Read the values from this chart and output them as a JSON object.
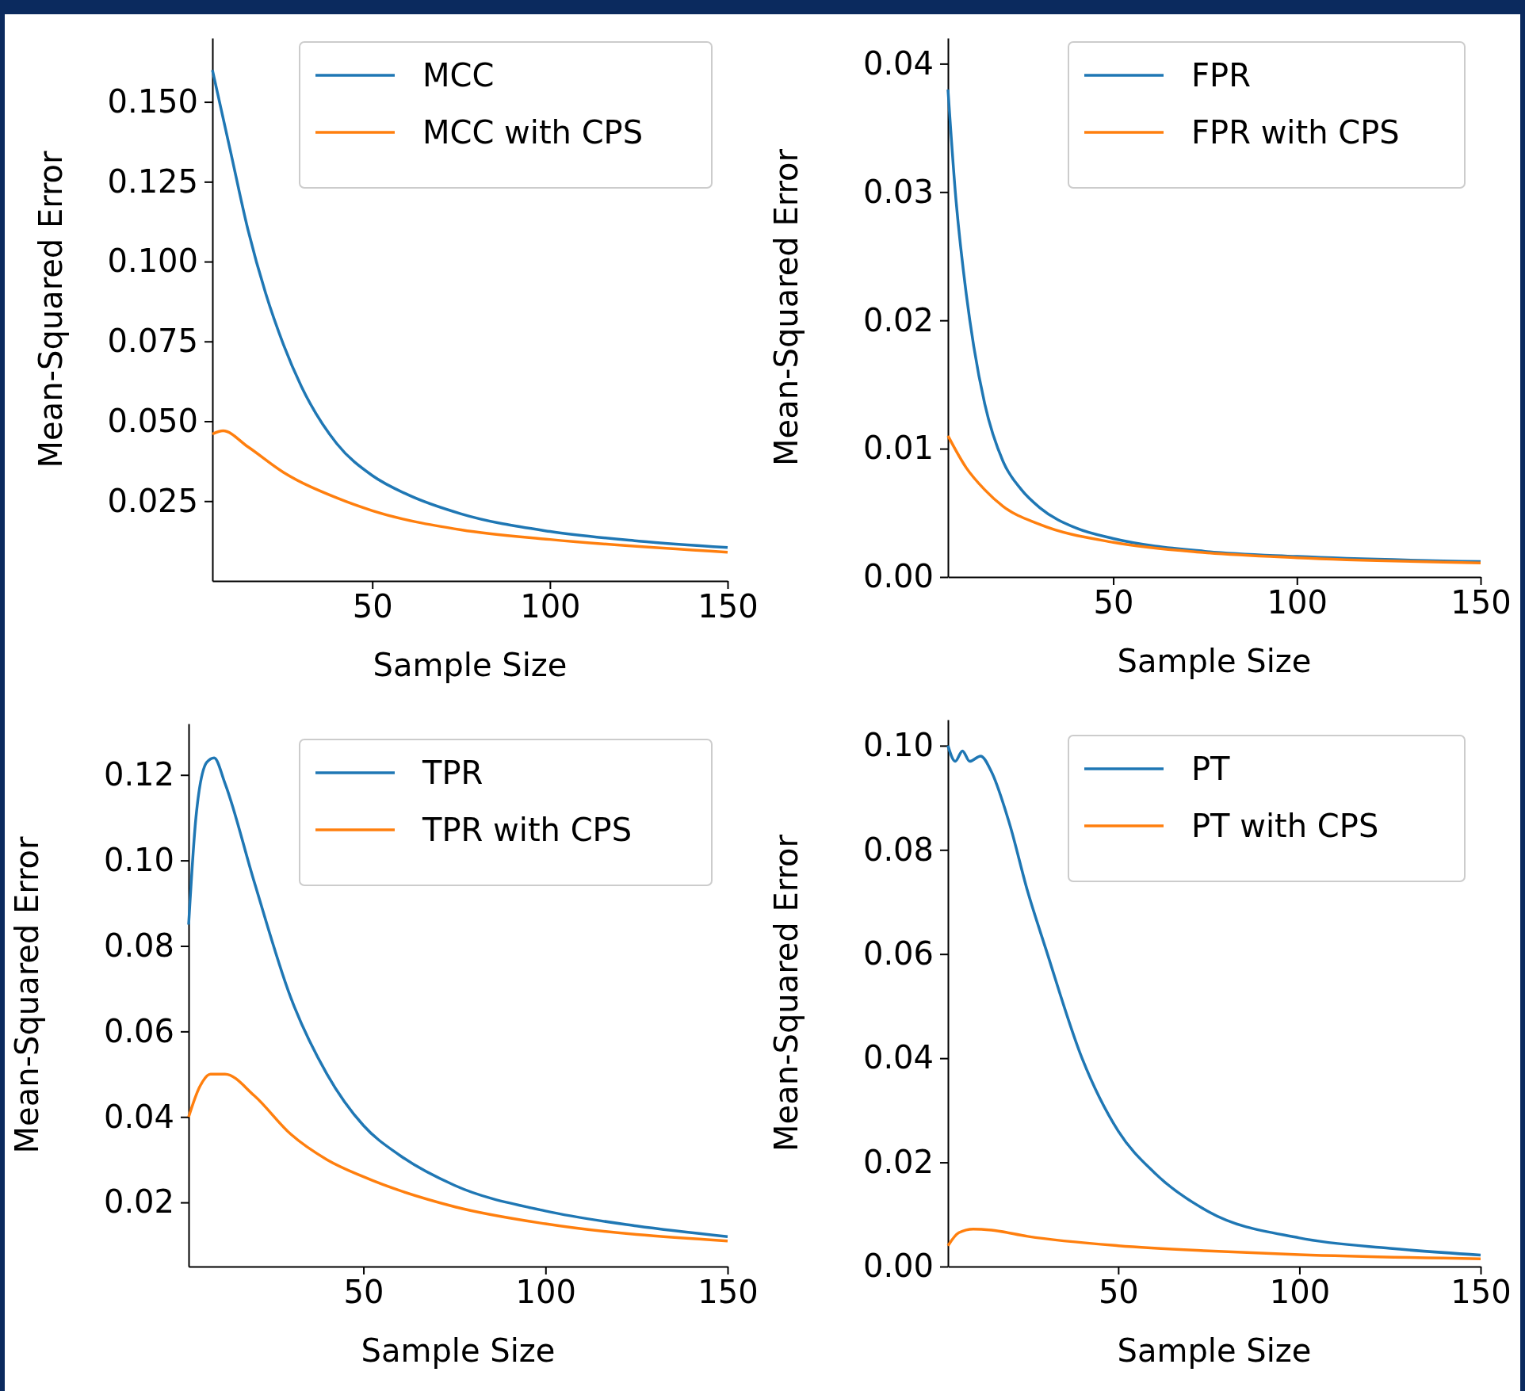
{
  "chart_data": [
    {
      "type": "line",
      "xlabel": "Sample Size",
      "ylabel": "Mean-Squared Error",
      "xlim": [
        5,
        150
      ],
      "ylim": [
        0,
        0.17
      ],
      "xticks": [
        50,
        100,
        150
      ],
      "yticks": [
        0.025,
        {
          "value": 0.05,
          "label": "0.050"
        },
        0.075,
        {
          "value": 0.1,
          "label": "0.100"
        },
        0.125,
        {
          "value": 0.15,
          "label": "0.150"
        }
      ],
      "legend": "top right",
      "grid": false,
      "series": [
        {
          "name": "MCC",
          "color": "#1f77b4",
          "x": [
            5,
            10,
            15,
            20,
            25,
            30,
            40,
            50,
            60,
            75,
            100,
            125,
            150
          ],
          "values": [
            0.16,
            0.135,
            0.11,
            0.09,
            0.074,
            0.061,
            0.043,
            0.033,
            0.027,
            0.021,
            0.0155,
            0.0125,
            0.0105
          ]
        },
        {
          "name": "MCC with CPS",
          "color": "#ff7f0e",
          "x": [
            5,
            8,
            15,
            25,
            40,
            50,
            75,
            100,
            150
          ],
          "values": [
            0.046,
            0.047,
            0.042,
            0.034,
            0.026,
            0.022,
            0.016,
            0.013,
            0.009
          ]
        }
      ]
    },
    {
      "type": "line",
      "xlabel": "Sample Size",
      "ylabel": "Mean-Squared Error",
      "xlim": [
        5,
        150
      ],
      "ylim": [
        0,
        0.042
      ],
      "xticks": [
        50,
        100,
        150
      ],
      "yticks": [
        {
          "value": 0,
          "label": "0.00"
        },
        {
          "value": 0.01,
          "label": "0.01"
        },
        {
          "value": 0.02,
          "label": "0.02"
        },
        {
          "value": 0.03,
          "label": "0.03"
        },
        {
          "value": 0.04,
          "label": "0.04"
        }
      ],
      "legend": "top right",
      "grid": false,
      "series": [
        {
          "name": "FPR",
          "color": "#1f77b4",
          "x": [
            5,
            7,
            10,
            12,
            15,
            20,
            25,
            30,
            40,
            50,
            75,
            100,
            150
          ],
          "values": [
            0.038,
            0.03,
            0.022,
            0.018,
            0.0135,
            0.009,
            0.0068,
            0.0054,
            0.0038,
            0.003,
            0.002,
            0.0016,
            0.0012
          ]
        },
        {
          "name": "FPR with CPS",
          "color": "#ff7f0e",
          "x": [
            5,
            10,
            15,
            20,
            30,
            50,
            75,
            100,
            150
          ],
          "values": [
            0.011,
            0.0085,
            0.0068,
            0.0055,
            0.0041,
            0.0027,
            0.0019,
            0.0015,
            0.0011
          ]
        }
      ]
    },
    {
      "type": "line",
      "xlabel": "Sample Size",
      "ylabel": "Mean-Squared Error",
      "xlim": [
        2,
        150
      ],
      "ylim": [
        0.005,
        0.132
      ],
      "xticks": [
        50,
        100,
        150
      ],
      "yticks": [
        0.02,
        0.04,
        0.06,
        0.08,
        {
          "value": 0.1,
          "label": "0.10"
        },
        0.12
      ],
      "legend": "top right",
      "grid": false,
      "series": [
        {
          "name": "TPR",
          "color": "#1f77b4",
          "x": [
            2,
            4,
            7,
            9,
            12,
            20,
            30,
            40,
            50,
            60,
            75,
            100,
            125,
            150
          ],
          "values": [
            0.085,
            0.11,
            0.123,
            0.124,
            0.118,
            0.095,
            0.068,
            0.05,
            0.038,
            0.031,
            0.024,
            0.018,
            0.0145,
            0.012
          ]
        },
        {
          "name": "TPR with CPS",
          "color": "#ff7f0e",
          "x": [
            2,
            5,
            8,
            12,
            20,
            30,
            40,
            50,
            75,
            100,
            150
          ],
          "values": [
            0.04,
            0.047,
            0.05,
            0.05,
            0.045,
            0.036,
            0.03,
            0.026,
            0.019,
            0.015,
            0.011
          ]
        }
      ]
    },
    {
      "type": "line",
      "xlabel": "Sample Size",
      "ylabel": "Mean-Squared Error",
      "xlim": [
        3,
        150
      ],
      "ylim": [
        0,
        0.105
      ],
      "xticks": [
        50,
        100,
        150
      ],
      "yticks": [
        {
          "value": 0,
          "label": "0.00"
        },
        {
          "value": 0.02,
          "label": "0.02"
        },
        {
          "value": 0.04,
          "label": "0.04"
        },
        {
          "value": 0.06,
          "label": "0.06"
        },
        {
          "value": 0.08,
          "label": "0.08"
        },
        {
          "value": 0.1,
          "label": "0.10"
        }
      ],
      "legend": "top right",
      "grid": false,
      "series": [
        {
          "name": "PT",
          "color": "#1f77b4",
          "x": [
            3,
            5,
            7,
            9,
            12,
            15,
            20,
            25,
            30,
            40,
            50,
            60,
            75,
            100,
            125,
            150
          ],
          "values": [
            0.1,
            0.097,
            0.099,
            0.097,
            0.098,
            0.095,
            0.085,
            0.072,
            0.061,
            0.04,
            0.026,
            0.018,
            0.0105,
            0.0055,
            0.0035,
            0.0022
          ]
        },
        {
          "name": "PT with CPS",
          "color": "#ff7f0e",
          "x": [
            3,
            6,
            10,
            15,
            25,
            50,
            75,
            100,
            150
          ],
          "values": [
            0.004,
            0.0065,
            0.0072,
            0.007,
            0.0058,
            0.004,
            0.003,
            0.0023,
            0.0015
          ]
        }
      ]
    }
  ]
}
